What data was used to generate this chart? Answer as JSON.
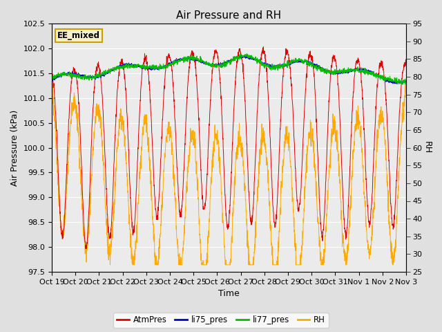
{
  "title": "Air Pressure and RH",
  "xlabel": "Time",
  "ylabel_left": "Air Pressure (kPa)",
  "ylabel_right": "RH",
  "ylim_left": [
    97.5,
    102.5
  ],
  "ylim_right": [
    25,
    95
  ],
  "yticks_left": [
    97.5,
    98.0,
    98.5,
    99.0,
    99.5,
    100.0,
    100.5,
    101.0,
    101.5,
    102.0,
    102.5
  ],
  "yticks_right": [
    25,
    30,
    35,
    40,
    45,
    50,
    55,
    60,
    65,
    70,
    75,
    80,
    85,
    90,
    95
  ],
  "xtick_labels": [
    "Oct 19",
    "Oct 20",
    "Oct 21",
    "Oct 22",
    "Oct 23",
    "Oct 24",
    "Oct 25",
    "Oct 26",
    "Oct 27",
    "Oct 28",
    "Oct 29",
    "Oct 30",
    "Oct 31",
    "Nov 1",
    "Nov 2",
    "Nov 3"
  ],
  "annotation_text": "EE_mixed",
  "annotation_color": "#c8a000",
  "colors": {
    "AtmPres": "#dd0000",
    "li75_pres": "#0000cc",
    "li77_pres": "#00bb00",
    "RH": "#ffaa00"
  },
  "legend_labels": [
    "AtmPres",
    "li75_pres",
    "li77_pres",
    "RH"
  ],
  "background_color": "#e0e0e0",
  "plot_bg_color": "#ebebeb",
  "grid_color": "#ffffff",
  "title_fontsize": 11,
  "axis_label_fontsize": 9,
  "tick_fontsize": 8
}
